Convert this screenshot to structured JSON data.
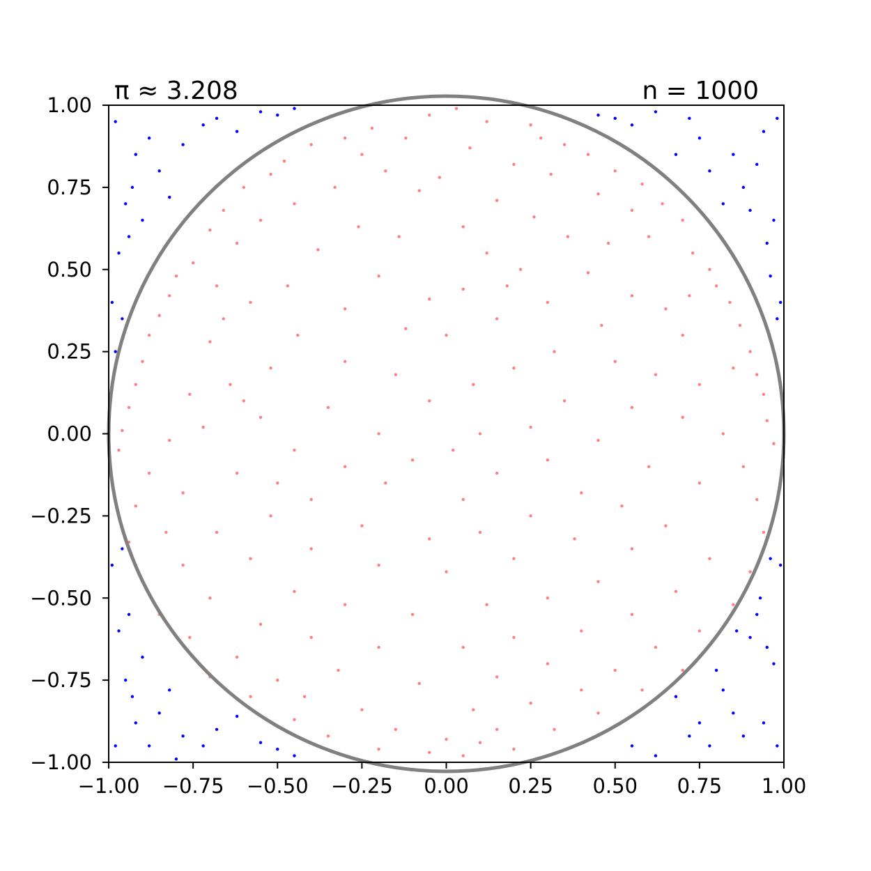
{
  "chart_data": {
    "type": "scatter",
    "title_left": "π ≈ 3.208",
    "title_right": "n = 1000",
    "xlabel": "",
    "ylabel": "",
    "xlim": [
      -1.0,
      1.0
    ],
    "ylim": [
      -1.0,
      1.0
    ],
    "xticks": [
      -1.0,
      -0.75,
      -0.5,
      -0.25,
      0.0,
      0.25,
      0.5,
      0.75,
      1.0
    ],
    "yticks": [
      -1.0,
      -0.75,
      -0.5,
      -0.25,
      0.0,
      0.25,
      0.5,
      0.75,
      1.0
    ],
    "xtick_labels": [
      "−1.00",
      "−0.75",
      "−0.50",
      "−0.25",
      "0.00",
      "0.25",
      "0.50",
      "0.75",
      "1.00"
    ],
    "ytick_labels": [
      "−1.00",
      "−0.75",
      "−0.50",
      "−0.25",
      "0.00",
      "0.25",
      "0.50",
      "0.75",
      "1.00"
    ],
    "grid": false,
    "circle": {
      "center": [
        0,
        0
      ],
      "radius": 1.0,
      "color": "#808080"
    },
    "inside_color": "#ff8080",
    "outside_color": "#0000ff",
    "inside_points": [
      [
        0.03,
        0.99
      ],
      [
        -0.05,
        0.97
      ],
      [
        0.12,
        0.95
      ],
      [
        -0.22,
        0.93
      ],
      [
        0.25,
        0.94
      ],
      [
        -0.3,
        0.9
      ],
      [
        0.35,
        0.88
      ],
      [
        -0.12,
        0.9
      ],
      [
        0.07,
        0.87
      ],
      [
        -0.4,
        0.88
      ],
      [
        0.42,
        0.85
      ],
      [
        -0.48,
        0.83
      ],
      [
        0.5,
        0.8
      ],
      [
        -0.52,
        0.79
      ],
      [
        0.58,
        0.76
      ],
      [
        -0.6,
        0.75
      ],
      [
        0.64,
        0.7
      ],
      [
        -0.66,
        0.68
      ],
      [
        0.7,
        0.65
      ],
      [
        -0.7,
        0.62
      ],
      [
        -0.02,
        0.78
      ],
      [
        0.2,
        0.82
      ],
      [
        -0.18,
        0.8
      ],
      [
        0.31,
        0.79
      ],
      [
        -0.33,
        0.75
      ],
      [
        0.15,
        0.71
      ],
      [
        -0.08,
        0.74
      ],
      [
        0.45,
        0.73
      ],
      [
        -0.45,
        0.7
      ],
      [
        0.55,
        0.68
      ],
      [
        -0.55,
        0.65
      ],
      [
        0.6,
        0.6
      ],
      [
        -0.62,
        0.58
      ],
      [
        0.26,
        0.66
      ],
      [
        -0.26,
        0.63
      ],
      [
        0.05,
        0.63
      ],
      [
        -0.14,
        0.6
      ],
      [
        0.36,
        0.6
      ],
      [
        0.12,
        0.55
      ],
      [
        -0.38,
        0.56
      ],
      [
        0.73,
        0.55
      ],
      [
        -0.75,
        0.52
      ],
      [
        0.78,
        0.5
      ],
      [
        -0.8,
        0.48
      ],
      [
        0.8,
        0.45
      ],
      [
        -0.82,
        0.42
      ],
      [
        0.84,
        0.4
      ],
      [
        -0.85,
        0.36
      ],
      [
        0.87,
        0.33
      ],
      [
        -0.88,
        0.3
      ],
      [
        0.22,
        0.5
      ],
      [
        -0.2,
        0.48
      ],
      [
        0.42,
        0.49
      ],
      [
        -0.47,
        0.45
      ],
      [
        0.55,
        0.42
      ],
      [
        -0.58,
        0.4
      ],
      [
        0.65,
        0.38
      ],
      [
        -0.66,
        0.35
      ],
      [
        0.05,
        0.44
      ],
      [
        -0.05,
        0.41
      ],
      [
        0.3,
        0.4
      ],
      [
        -0.3,
        0.38
      ],
      [
        0.15,
        0.35
      ],
      [
        -0.12,
        0.32
      ],
      [
        0.46,
        0.33
      ],
      [
        -0.44,
        0.3
      ],
      [
        0.7,
        0.3
      ],
      [
        -0.7,
        0.28
      ],
      [
        0.0,
        0.3
      ],
      [
        0.32,
        0.25
      ],
      [
        0.9,
        0.25
      ],
      [
        -0.9,
        0.22
      ],
      [
        0.92,
        0.18
      ],
      [
        -0.92,
        0.15
      ],
      [
        0.94,
        0.12
      ],
      [
        -0.94,
        0.08
      ],
      [
        0.95,
        0.04
      ],
      [
        -0.96,
        0.01
      ],
      [
        0.97,
        -0.03
      ],
      [
        -0.97,
        -0.05
      ],
      [
        -0.3,
        0.22
      ],
      [
        0.2,
        0.2
      ],
      [
        -0.15,
        0.18
      ],
      [
        0.5,
        0.22
      ],
      [
        -0.52,
        0.2
      ],
      [
        0.62,
        0.18
      ],
      [
        -0.64,
        0.15
      ],
      [
        0.75,
        0.15
      ],
      [
        -0.76,
        0.12
      ],
      [
        0.08,
        0.15
      ],
      [
        -0.05,
        0.1
      ],
      [
        0.35,
        0.1
      ],
      [
        -0.35,
        0.08
      ],
      [
        0.55,
        0.08
      ],
      [
        -0.55,
        0.05
      ],
      [
        0.7,
        0.05
      ],
      [
        -0.72,
        0.02
      ],
      [
        0.25,
        0.02
      ],
      [
        -0.2,
        0.0
      ],
      [
        0.1,
        0.0
      ],
      [
        0.82,
        0.0
      ],
      [
        -0.82,
        -0.02
      ],
      [
        0.45,
        -0.02
      ],
      [
        -0.45,
        -0.05
      ],
      [
        0.02,
        -0.05
      ],
      [
        -0.1,
        -0.08
      ],
      [
        0.3,
        -0.08
      ],
      [
        -0.3,
        -0.1
      ],
      [
        0.6,
        -0.1
      ],
      [
        -0.62,
        -0.12
      ],
      [
        0.88,
        -0.1
      ],
      [
        -0.88,
        -0.12
      ],
      [
        0.15,
        -0.12
      ],
      [
        -0.18,
        -0.15
      ],
      [
        0.75,
        -0.15
      ],
      [
        -0.78,
        -0.18
      ],
      [
        0.4,
        -0.18
      ],
      [
        -0.4,
        -0.2
      ],
      [
        0.05,
        -0.2
      ],
      [
        0.52,
        -0.22
      ],
      [
        0.92,
        -0.2
      ],
      [
        -0.92,
        -0.22
      ],
      [
        -0.52,
        -0.25
      ],
      [
        0.25,
        -0.25
      ],
      [
        -0.25,
        -0.28
      ],
      [
        0.65,
        -0.28
      ],
      [
        -0.68,
        -0.3
      ],
      [
        0.1,
        -0.3
      ],
      [
        -0.05,
        -0.32
      ],
      [
        0.38,
        -0.32
      ],
      [
        0.94,
        -0.3
      ],
      [
        -0.94,
        -0.33
      ],
      [
        -0.4,
        -0.35
      ],
      [
        0.55,
        -0.35
      ],
      [
        -0.58,
        -0.38
      ],
      [
        0.78,
        -0.38
      ],
      [
        -0.78,
        -0.4
      ],
      [
        0.2,
        -0.38
      ],
      [
        -0.2,
        -0.4
      ],
      [
        0.0,
        -0.42
      ],
      [
        0.9,
        -0.42
      ],
      [
        -0.9,
        -0.45
      ],
      [
        0.45,
        -0.45
      ],
      [
        -0.45,
        -0.48
      ],
      [
        0.68,
        -0.48
      ],
      [
        -0.7,
        -0.5
      ],
      [
        0.3,
        -0.5
      ],
      [
        -0.3,
        -0.52
      ],
      [
        0.12,
        -0.52
      ],
      [
        -0.1,
        -0.55
      ],
      [
        0.85,
        -0.52
      ],
      [
        -0.85,
        -0.55
      ],
      [
        0.55,
        -0.55
      ],
      [
        -0.55,
        -0.58
      ],
      [
        0.75,
        -0.6
      ],
      [
        -0.76,
        -0.62
      ],
      [
        0.4,
        -0.6
      ],
      [
        -0.4,
        -0.62
      ],
      [
        0.2,
        -0.62
      ],
      [
        -0.2,
        -0.65
      ],
      [
        0.05,
        -0.65
      ],
      [
        0.62,
        -0.65
      ],
      [
        -0.62,
        -0.68
      ],
      [
        0.3,
        -0.7
      ],
      [
        -0.32,
        -0.72
      ],
      [
        0.5,
        -0.72
      ],
      [
        -0.5,
        -0.75
      ],
      [
        0.7,
        -0.72
      ],
      [
        -0.7,
        -0.74
      ],
      [
        0.15,
        -0.74
      ],
      [
        -0.08,
        -0.76
      ],
      [
        0.4,
        -0.78
      ],
      [
        -0.42,
        -0.8
      ],
      [
        0.58,
        -0.78
      ],
      [
        -0.58,
        -0.8
      ],
      [
        0.25,
        -0.82
      ],
      [
        -0.25,
        -0.84
      ],
      [
        0.08,
        -0.84
      ],
      [
        0.45,
        -0.85
      ],
      [
        -0.45,
        -0.87
      ],
      [
        0.15,
        -0.9
      ],
      [
        -0.15,
        -0.9
      ],
      [
        0.32,
        -0.9
      ],
      [
        -0.35,
        -0.92
      ],
      [
        0.0,
        -0.93
      ],
      [
        0.2,
        -0.96
      ],
      [
        -0.2,
        -0.96
      ],
      [
        0.05,
        -0.98
      ],
      [
        -0.05,
        -0.97
      ],
      [
        0.1,
        -0.94
      ],
      [
        -0.6,
        0.1
      ],
      [
        -0.5,
        -0.15
      ],
      [
        0.48,
        0.58
      ],
      [
        0.18,
        0.45
      ],
      [
        -0.25,
        0.85
      ],
      [
        0.28,
        0.9
      ],
      [
        -0.68,
        0.45
      ],
      [
        0.72,
        0.42
      ],
      [
        0.85,
        0.2
      ],
      [
        -0.83,
        -0.3
      ]
    ],
    "outside_points": [
      [
        -0.98,
        0.95
      ],
      [
        -0.95,
        0.7
      ],
      [
        -0.92,
        0.85
      ],
      [
        -0.88,
        0.9
      ],
      [
        -0.85,
        0.8
      ],
      [
        -0.82,
        0.72
      ],
      [
        -0.78,
        0.88
      ],
      [
        -0.97,
        0.55
      ],
      [
        -0.94,
        0.6
      ],
      [
        -0.9,
        0.65
      ],
      [
        -0.99,
        0.4
      ],
      [
        -0.96,
        0.35
      ],
      [
        -0.98,
        0.25
      ],
      [
        -0.72,
        0.94
      ],
      [
        -0.68,
        0.96
      ],
      [
        -0.62,
        0.92
      ],
      [
        -0.55,
        0.98
      ],
      [
        -0.5,
        0.97
      ],
      [
        -0.45,
        0.99
      ],
      [
        -0.93,
        0.75
      ],
      [
        0.98,
        0.96
      ],
      [
        0.94,
        0.92
      ],
      [
        0.92,
        0.82
      ],
      [
        0.88,
        0.75
      ],
      [
        0.85,
        0.85
      ],
      [
        0.82,
        0.7
      ],
      [
        0.78,
        0.8
      ],
      [
        0.75,
        0.9
      ],
      [
        0.97,
        0.65
      ],
      [
        0.95,
        0.58
      ],
      [
        0.99,
        0.4
      ],
      [
        0.96,
        0.48
      ],
      [
        0.72,
        0.96
      ],
      [
        0.68,
        0.85
      ],
      [
        0.62,
        0.98
      ],
      [
        0.55,
        0.94
      ],
      [
        0.5,
        0.96
      ],
      [
        0.45,
        0.97
      ],
      [
        0.9,
        0.68
      ],
      [
        0.98,
        0.35
      ],
      [
        -0.98,
        -0.95
      ],
      [
        -0.95,
        -0.75
      ],
      [
        -0.92,
        -0.88
      ],
      [
        -0.88,
        -0.95
      ],
      [
        -0.85,
        -0.85
      ],
      [
        -0.82,
        -0.78
      ],
      [
        -0.78,
        -0.92
      ],
      [
        -0.97,
        -0.6
      ],
      [
        -0.94,
        -0.55
      ],
      [
        -0.9,
        -0.68
      ],
      [
        -0.99,
        -0.4
      ],
      [
        -0.96,
        -0.35
      ],
      [
        -0.72,
        -0.95
      ],
      [
        -0.68,
        -0.9
      ],
      [
        -0.62,
        -0.86
      ],
      [
        -0.55,
        -0.94
      ],
      [
        -0.5,
        -0.96
      ],
      [
        -0.45,
        -0.98
      ],
      [
        -0.93,
        -0.8
      ],
      [
        -0.8,
        -0.99
      ],
      [
        0.98,
        -0.95
      ],
      [
        0.94,
        -0.88
      ],
      [
        0.92,
        -0.55
      ],
      [
        0.88,
        -0.92
      ],
      [
        0.85,
        -0.85
      ],
      [
        0.82,
        -0.78
      ],
      [
        0.78,
        -0.95
      ],
      [
        0.75,
        -0.88
      ],
      [
        0.97,
        -0.7
      ],
      [
        0.95,
        -0.65
      ],
      [
        0.99,
        -0.4
      ],
      [
        0.96,
        -0.38
      ],
      [
        0.72,
        -0.92
      ],
      [
        0.68,
        -0.8
      ],
      [
        0.62,
        -0.98
      ],
      [
        0.55,
        -0.95
      ],
      [
        0.9,
        -0.62
      ],
      [
        0.86,
        -0.6
      ],
      [
        0.93,
        -0.5
      ],
      [
        0.8,
        -0.72
      ]
    ]
  }
}
